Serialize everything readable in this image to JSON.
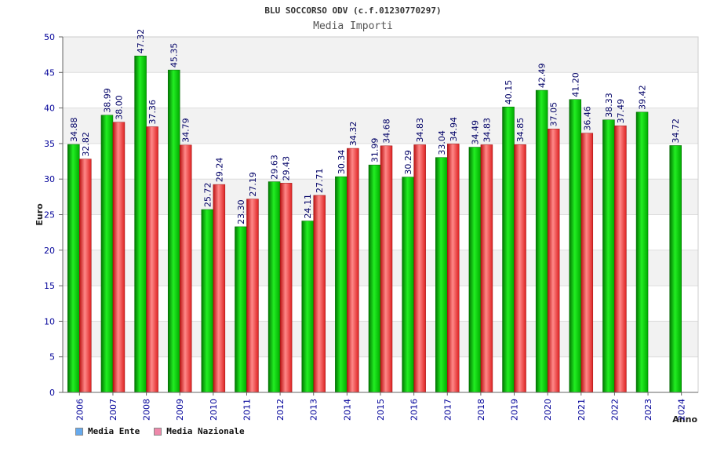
{
  "header": {
    "title": "BLU SOCCORSO ODV (c.f.01230770297)",
    "subtitle": "Media Importi"
  },
  "chart_data": {
    "type": "bar",
    "title": "BLU SOCCORSO ODV (c.f.01230770297)",
    "subtitle": "Media Importi",
    "xlabel": "Anno",
    "ylabel": "Euro",
    "ylim": [
      0,
      50
    ],
    "yticks": [
      0,
      5,
      10,
      15,
      20,
      25,
      30,
      35,
      40,
      45,
      50
    ],
    "categories": [
      "2006",
      "2007",
      "2008",
      "2009",
      "2010",
      "2011",
      "2012",
      "2013",
      "2014",
      "2015",
      "2016",
      "2017",
      "2018",
      "2019",
      "2020",
      "2021",
      "2022",
      "2023",
      "2024"
    ],
    "series": [
      {
        "name": "Media Ente",
        "color": "#00bb00",
        "values": [
          34.88,
          38.99,
          47.32,
          45.35,
          25.72,
          23.3,
          29.63,
          24.11,
          30.34,
          31.99,
          30.29,
          33.04,
          34.49,
          40.15,
          42.49,
          41.2,
          38.33,
          39.42,
          34.72
        ],
        "labels": [
          "34.88",
          "38.99",
          "47.32",
          "45.35",
          "25.72",
          "23.30",
          "29.63",
          "24.11",
          "30.34",
          "31.99",
          "30.29",
          "33.04",
          "34.49",
          "40.15",
          "42.49",
          "41.20",
          "38.33",
          "39.42",
          "34.72"
        ]
      },
      {
        "name": "Media Nazionale",
        "color": "#dd2222",
        "values": [
          32.82,
          38.0,
          37.36,
          34.79,
          29.24,
          27.19,
          29.43,
          27.71,
          34.32,
          34.68,
          34.83,
          34.94,
          34.83,
          34.85,
          37.05,
          36.46,
          37.49,
          null,
          null
        ],
        "labels": [
          "32.82",
          "38.00",
          "37.36",
          "34.79",
          "29.24",
          "27.19",
          "29.43",
          "27.71",
          "34.32",
          "34.68",
          "34.83",
          "34.94",
          "34.83",
          "34.85",
          "37.05",
          "36.46",
          "37.49",
          "",
          ""
        ]
      }
    ],
    "legend": {
      "position": "bottom-left",
      "items": [
        {
          "name": "Media Ente",
          "color": "#66aaee"
        },
        {
          "name": "Media Nazionale",
          "color": "#ee88aa"
        }
      ]
    },
    "grid": true
  }
}
